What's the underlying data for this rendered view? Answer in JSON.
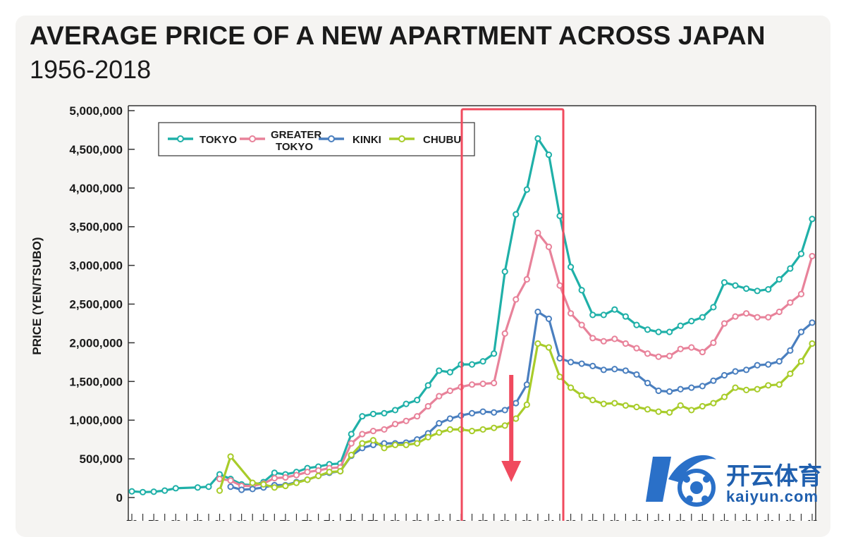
{
  "header": {
    "title": "AVERAGE PRICE OF A NEW APARTMENT ACROSS JAPAN",
    "subtitle": "1956-2018"
  },
  "watermark": {
    "cn": "开云体育",
    "en": "kaiyun.com"
  },
  "colors": {
    "tokyo": "#1fb0a8",
    "greater_tokyo": "#e8829a",
    "kinki": "#4a7fbf",
    "chubu": "#a8cc2a",
    "highlight": "#f04a5e",
    "card": "#f5f4f2"
  },
  "chart_data": {
    "type": "line",
    "title": "AVERAGE PRICE OF A NEW APARTMENT ACROSS JAPAN",
    "subtitle": "1956-2018",
    "xlabel": "",
    "ylabel": "PRICE (YEN/TSUBO)",
    "ylim": [
      0,
      5000000
    ],
    "xlim": [
      1956,
      2018
    ],
    "grid": false,
    "legend_position": "top-left",
    "y_ticks": [
      "0",
      "500,000",
      "1,000,000",
      "1,500,000",
      "2,000,000",
      "2,500,000",
      "3,000,000",
      "3,500,000",
      "4,000,000",
      "4,500,000",
      "5,000,000"
    ],
    "x_tick_labels": [
      "56",
      "58",
      "60",
      "62",
      "64",
      "66",
      "68",
      "70",
      "72",
      "74",
      "76",
      "78",
      "80",
      "82",
      "84",
      "86",
      "88",
      "90",
      "92",
      "94",
      "96",
      "98",
      "00",
      "02",
      "04",
      "06",
      "08",
      "10",
      "12",
      "14",
      "16",
      "18"
    ],
    "highlight": {
      "x_range": [
        1986,
        1995
      ],
      "arrow_x": 1990
    },
    "series": [
      {
        "name": "TOKYO",
        "color_key": "tokyo",
        "points": [
          [
            1956,
            80000
          ],
          [
            1957,
            70000
          ],
          [
            1958,
            75000
          ],
          [
            1959,
            90000
          ],
          [
            1960,
            120000
          ],
          [
            1962,
            130000
          ],
          [
            1963,
            140000
          ],
          [
            1964,
            300000
          ],
          [
            1965,
            240000
          ],
          [
            1966,
            170000
          ],
          [
            1967,
            160000
          ],
          [
            1968,
            200000
          ],
          [
            1969,
            320000
          ],
          [
            1970,
            300000
          ],
          [
            1971,
            330000
          ],
          [
            1972,
            380000
          ],
          [
            1973,
            400000
          ],
          [
            1974,
            430000
          ],
          [
            1975,
            440000
          ],
          [
            1976,
            820000
          ],
          [
            1977,
            1050000
          ],
          [
            1978,
            1080000
          ],
          [
            1979,
            1090000
          ],
          [
            1980,
            1130000
          ],
          [
            1981,
            1210000
          ],
          [
            1982,
            1260000
          ],
          [
            1983,
            1450000
          ],
          [
            1984,
            1640000
          ],
          [
            1985,
            1620000
          ],
          [
            1986,
            1720000
          ],
          [
            1987,
            1720000
          ],
          [
            1988,
            1760000
          ],
          [
            1989,
            1860000
          ],
          [
            1990,
            2920000
          ],
          [
            1991,
            3660000
          ],
          [
            1992,
            3980000
          ],
          [
            1993,
            4640000
          ],
          [
            1994,
            4430000
          ],
          [
            1995,
            3640000
          ],
          [
            1996,
            2980000
          ],
          [
            1997,
            2680000
          ],
          [
            1998,
            2360000
          ],
          [
            1999,
            2360000
          ],
          [
            2000,
            2430000
          ],
          [
            2001,
            2340000
          ],
          [
            2002,
            2230000
          ],
          [
            2003,
            2170000
          ],
          [
            2004,
            2140000
          ],
          [
            2005,
            2140000
          ],
          [
            2006,
            2220000
          ],
          [
            2007,
            2280000
          ],
          [
            2008,
            2330000
          ],
          [
            2009,
            2460000
          ],
          [
            2010,
            2780000
          ],
          [
            2011,
            2740000
          ],
          [
            2012,
            2700000
          ],
          [
            2013,
            2670000
          ],
          [
            2014,
            2690000
          ],
          [
            2015,
            2820000
          ],
          [
            2016,
            2960000
          ],
          [
            2017,
            3150000
          ],
          [
            2018,
            3600000
          ]
        ]
      },
      {
        "name": "GREATER TOKYO",
        "color_key": "greater_tokyo",
        "points": [
          [
            1964,
            240000
          ],
          [
            1965,
            220000
          ],
          [
            1966,
            150000
          ],
          [
            1967,
            150000
          ],
          [
            1968,
            180000
          ],
          [
            1969,
            250000
          ],
          [
            1970,
            260000
          ],
          [
            1971,
            290000
          ],
          [
            1972,
            330000
          ],
          [
            1973,
            350000
          ],
          [
            1974,
            380000
          ],
          [
            1975,
            390000
          ],
          [
            1976,
            700000
          ],
          [
            1977,
            820000
          ],
          [
            1978,
            860000
          ],
          [
            1979,
            880000
          ],
          [
            1980,
            950000
          ],
          [
            1981,
            990000
          ],
          [
            1982,
            1050000
          ],
          [
            1983,
            1180000
          ],
          [
            1984,
            1310000
          ],
          [
            1985,
            1380000
          ],
          [
            1986,
            1430000
          ],
          [
            1987,
            1460000
          ],
          [
            1988,
            1470000
          ],
          [
            1989,
            1480000
          ],
          [
            1990,
            2120000
          ],
          [
            1991,
            2560000
          ],
          [
            1992,
            2820000
          ],
          [
            1993,
            3420000
          ],
          [
            1994,
            3240000
          ],
          [
            1995,
            2740000
          ],
          [
            1996,
            2380000
          ],
          [
            1997,
            2230000
          ],
          [
            1998,
            2060000
          ],
          [
            1999,
            2020000
          ],
          [
            2000,
            2050000
          ],
          [
            2001,
            1990000
          ],
          [
            2002,
            1930000
          ],
          [
            2003,
            1860000
          ],
          [
            2004,
            1820000
          ],
          [
            2005,
            1830000
          ],
          [
            2006,
            1920000
          ],
          [
            2007,
            1940000
          ],
          [
            2008,
            1880000
          ],
          [
            2009,
            2000000
          ],
          [
            2010,
            2250000
          ],
          [
            2011,
            2340000
          ],
          [
            2012,
            2380000
          ],
          [
            2013,
            2330000
          ],
          [
            2014,
            2330000
          ],
          [
            2015,
            2400000
          ],
          [
            2016,
            2520000
          ],
          [
            2017,
            2630000
          ],
          [
            2018,
            3120000
          ]
        ]
      },
      {
        "name": "KINKI",
        "color_key": "kinki",
        "points": [
          [
            1965,
            140000
          ],
          [
            1966,
            100000
          ],
          [
            1967,
            110000
          ],
          [
            1968,
            130000
          ],
          [
            1969,
            160000
          ],
          [
            1970,
            160000
          ],
          [
            1971,
            200000
          ],
          [
            1972,
            230000
          ],
          [
            1973,
            280000
          ],
          [
            1974,
            320000
          ],
          [
            1975,
            340000
          ],
          [
            1976,
            540000
          ],
          [
            1977,
            640000
          ],
          [
            1978,
            680000
          ],
          [
            1979,
            700000
          ],
          [
            1980,
            700000
          ],
          [
            1981,
            710000
          ],
          [
            1982,
            750000
          ],
          [
            1983,
            830000
          ],
          [
            1984,
            960000
          ],
          [
            1985,
            1020000
          ],
          [
            1986,
            1060000
          ],
          [
            1987,
            1090000
          ],
          [
            1988,
            1110000
          ],
          [
            1989,
            1100000
          ],
          [
            1990,
            1130000
          ],
          [
            1991,
            1220000
          ],
          [
            1992,
            1460000
          ],
          [
            1993,
            2400000
          ],
          [
            1994,
            2310000
          ],
          [
            1995,
            1800000
          ],
          [
            1996,
            1750000
          ],
          [
            1997,
            1730000
          ],
          [
            1998,
            1700000
          ],
          [
            1999,
            1650000
          ],
          [
            2000,
            1660000
          ],
          [
            2001,
            1640000
          ],
          [
            2002,
            1590000
          ],
          [
            2003,
            1480000
          ],
          [
            2004,
            1380000
          ],
          [
            2005,
            1370000
          ],
          [
            2006,
            1400000
          ],
          [
            2007,
            1420000
          ],
          [
            2008,
            1440000
          ],
          [
            2009,
            1510000
          ],
          [
            2010,
            1580000
          ],
          [
            2011,
            1630000
          ],
          [
            2012,
            1650000
          ],
          [
            2013,
            1710000
          ],
          [
            2014,
            1720000
          ],
          [
            2015,
            1760000
          ],
          [
            2016,
            1900000
          ],
          [
            2017,
            2140000
          ],
          [
            2018,
            2260000
          ]
        ]
      },
      {
        "name": "CHUBU",
        "color_key": "chubu",
        "points": [
          [
            1964,
            90000
          ],
          [
            1965,
            530000
          ],
          [
            1967,
            190000
          ],
          [
            1968,
            170000
          ],
          [
            1969,
            130000
          ],
          [
            1970,
            150000
          ],
          [
            1971,
            190000
          ],
          [
            1972,
            230000
          ],
          [
            1973,
            280000
          ],
          [
            1974,
            330000
          ],
          [
            1975,
            340000
          ],
          [
            1976,
            550000
          ],
          [
            1977,
            700000
          ],
          [
            1978,
            740000
          ],
          [
            1979,
            640000
          ],
          [
            1980,
            680000
          ],
          [
            1981,
            680000
          ],
          [
            1982,
            700000
          ],
          [
            1983,
            780000
          ],
          [
            1984,
            840000
          ],
          [
            1985,
            880000
          ],
          [
            1986,
            880000
          ],
          [
            1987,
            860000
          ],
          [
            1988,
            880000
          ],
          [
            1989,
            900000
          ],
          [
            1990,
            930000
          ],
          [
            1991,
            1020000
          ],
          [
            1992,
            1200000
          ],
          [
            1993,
            1990000
          ],
          [
            1994,
            1940000
          ],
          [
            1995,
            1560000
          ],
          [
            1996,
            1420000
          ],
          [
            1997,
            1320000
          ],
          [
            1998,
            1260000
          ],
          [
            1999,
            1210000
          ],
          [
            2000,
            1220000
          ],
          [
            2001,
            1190000
          ],
          [
            2002,
            1170000
          ],
          [
            2003,
            1140000
          ],
          [
            2004,
            1110000
          ],
          [
            2005,
            1100000
          ],
          [
            2006,
            1190000
          ],
          [
            2007,
            1130000
          ],
          [
            2008,
            1180000
          ],
          [
            2009,
            1220000
          ],
          [
            2010,
            1300000
          ],
          [
            2011,
            1420000
          ],
          [
            2012,
            1390000
          ],
          [
            2013,
            1400000
          ],
          [
            2014,
            1450000
          ],
          [
            2015,
            1460000
          ],
          [
            2016,
            1600000
          ],
          [
            2017,
            1760000
          ],
          [
            2018,
            1990000
          ]
        ]
      }
    ]
  }
}
